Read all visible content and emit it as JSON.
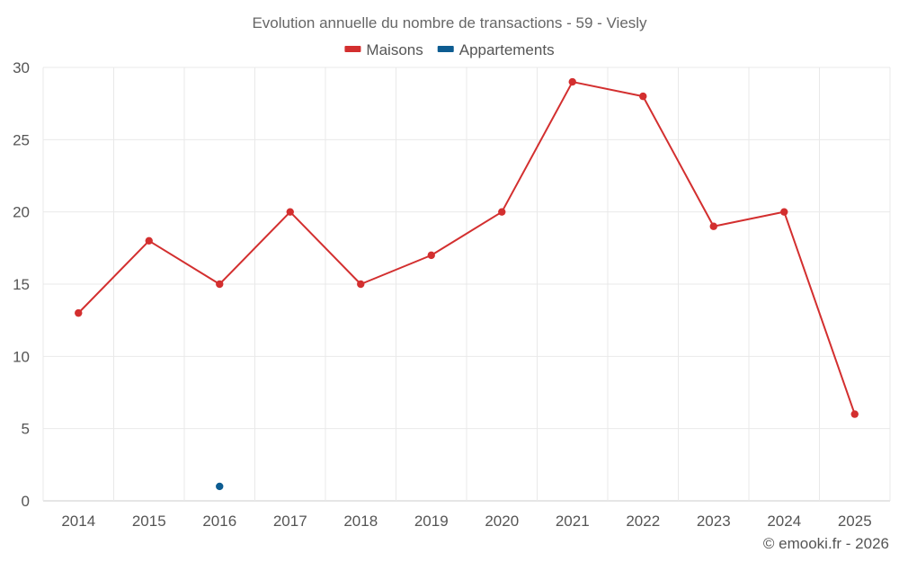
{
  "chart_data": {
    "type": "line",
    "title": "Evolution annuelle du nombre de transactions - 59 - Viesly",
    "xlabel": "",
    "ylabel": "",
    "categories": [
      "2014",
      "2015",
      "2016",
      "2017",
      "2018",
      "2019",
      "2020",
      "2021",
      "2022",
      "2023",
      "2024",
      "2025"
    ],
    "ylim": [
      0,
      30
    ],
    "yticks": [
      "0",
      "5",
      "10",
      "15",
      "20",
      "25",
      "30"
    ],
    "grid": true,
    "legend_position": "top-center",
    "series": [
      {
        "name": "Maisons",
        "color": "#d32f2f",
        "values": [
          13,
          18,
          15,
          20,
          15,
          17,
          20,
          29,
          28,
          19,
          20,
          6
        ]
      },
      {
        "name": "Appartements",
        "color": "#0d5c91",
        "values": [
          null,
          null,
          1,
          null,
          null,
          null,
          null,
          null,
          null,
          null,
          null,
          null
        ]
      }
    ]
  },
  "credit": "© emooki.fr - 2026"
}
